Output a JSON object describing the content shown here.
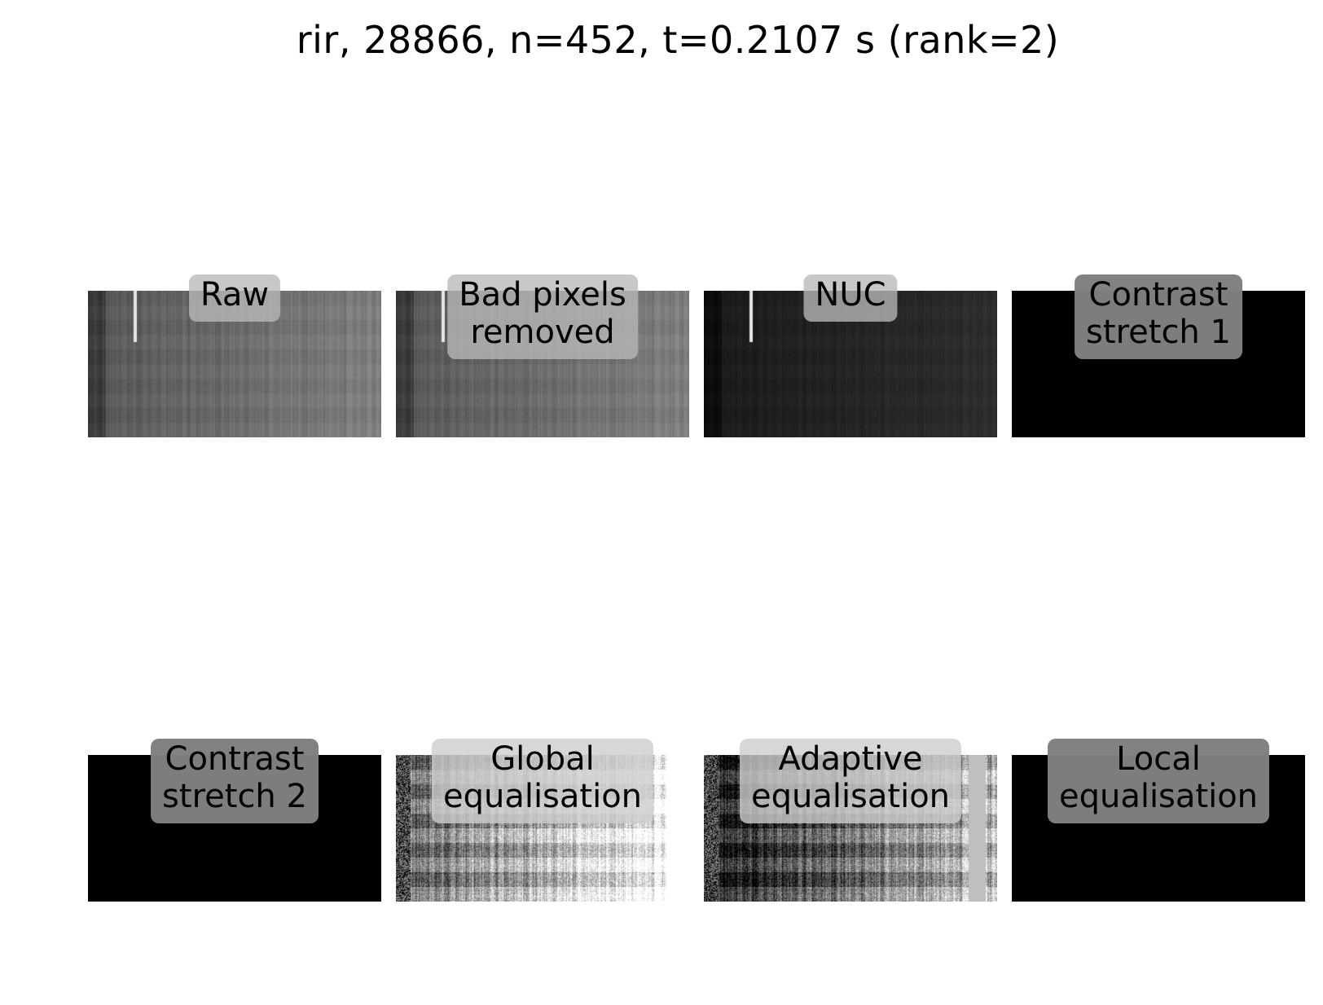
{
  "title": "rir, 28866, n=452, t=0.2107 s (rank=2)",
  "panels": [
    {
      "line1": "Raw",
      "line2": "",
      "style": "stripes",
      "brightness": 0.42,
      "contrast": 0.25,
      "labelbg": "light",
      "bright_col": 0.16
    },
    {
      "line1": "Bad pixels",
      "line2": "removed",
      "style": "stripes",
      "brightness": 0.42,
      "contrast": 0.25,
      "labelbg": "light",
      "bright_col": 0.16
    },
    {
      "line1": "NUC",
      "line2": "",
      "style": "stripes",
      "brightness": 0.14,
      "contrast": 0.12,
      "labelbg": "light",
      "bright_col": 0.16
    },
    {
      "line1": "Contrast",
      "line2": "stretch 1",
      "style": "black",
      "brightness": 0,
      "contrast": 0,
      "labelbg": "gray",
      "bright_col": -1
    },
    {
      "line1": "Contrast",
      "line2": "stretch 2",
      "style": "black",
      "brightness": 0,
      "contrast": 0,
      "labelbg": "gray",
      "bright_col": -1
    },
    {
      "line1": "Global",
      "line2": "equalisation",
      "style": "eq",
      "brightness": 0.5,
      "contrast": 1.0,
      "labelbg": "light",
      "bright_col": -1
    },
    {
      "line1": "Adaptive",
      "line2": "equalisation",
      "style": "eq",
      "brightness": 0.25,
      "contrast": 0.9,
      "labelbg": "light",
      "bright_col": -1
    },
    {
      "line1": "Local",
      "line2": "equalisation",
      "style": "black",
      "brightness": 0,
      "contrast": 0,
      "labelbg": "gray",
      "bright_col": -1
    }
  ]
}
